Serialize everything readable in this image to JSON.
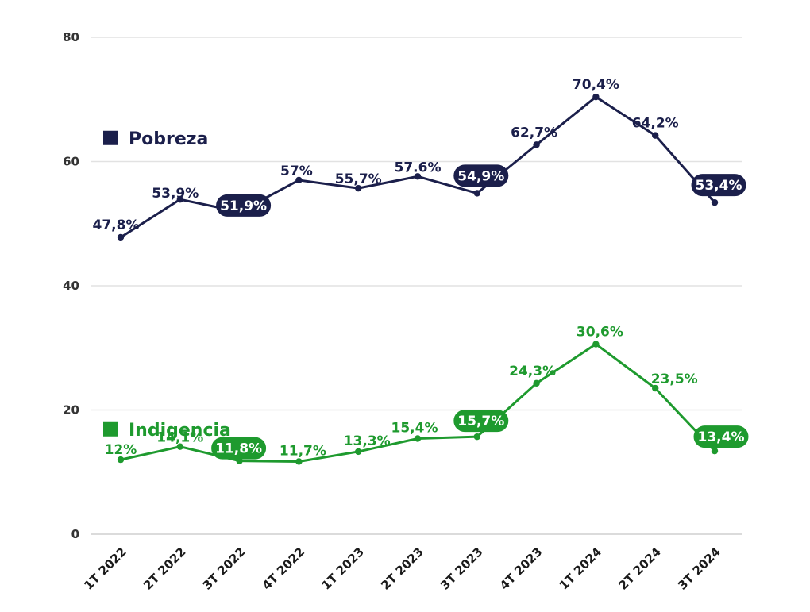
{
  "chart_data": {
    "type": "line",
    "categories": [
      "1T 2022",
      "2T 2022",
      "3T 2022",
      "4T 2022",
      "1T 2023",
      "2T 2023",
      "3T 2023",
      "4T 2023",
      "1T 2024",
      "2T 2024",
      "3T 2024"
    ],
    "ylim": [
      0,
      80
    ],
    "yticks": [
      "0",
      "20",
      "40",
      "60",
      "80"
    ],
    "grid": true,
    "legend_placement": "left, inline beside each series",
    "series": [
      {
        "name": "Pobreza",
        "color": "#1b1f4b",
        "values": [
          47.8,
          53.9,
          51.9,
          57,
          55.7,
          57.6,
          54.9,
          62.7,
          70.4,
          64.2,
          53.4
        ],
        "labels": [
          "47,8%",
          "53,9%",
          "51,9%",
          "57%",
          "55,7%",
          "57.6%",
          "54,9%",
          "62,7%",
          "70,4%",
          "64,2%",
          "53,4%"
        ],
        "highlighted": [
          2,
          6,
          10
        ]
      },
      {
        "name": "Indigencia",
        "color": "#1e9a2e",
        "values": [
          12,
          14.1,
          11.8,
          11.7,
          13.3,
          15.4,
          15.7,
          24.3,
          30.6,
          23.5,
          13.4
        ],
        "labels": [
          "12%",
          "14,1%",
          "11,8%",
          "11,7%",
          "13,3%",
          "15,4%",
          "15,7%",
          "24,3%",
          "30,6%",
          "23,5%",
          "13,4%"
        ],
        "highlighted": [
          2,
          6,
          10
        ]
      }
    ]
  }
}
